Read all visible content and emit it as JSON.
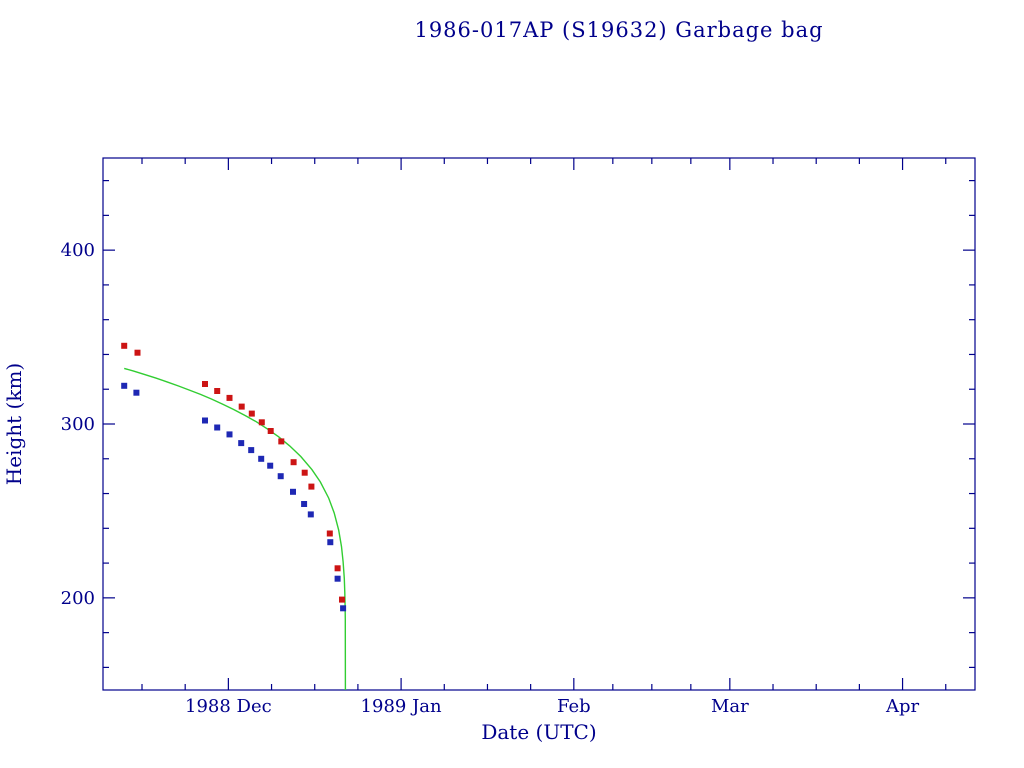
{
  "window": {
    "title": "1986-017AP (S19632) Garbage bag"
  },
  "chart_data": {
    "type": "scatter",
    "title": "1986-017AP (S19632) Garbage bag",
    "xlabel": "Date (UTC)",
    "ylabel": "Height (km)",
    "x_unit": "days since 1988-12-01 (UTC)",
    "xlim": [
      -22.5,
      134
    ],
    "ylim": [
      147,
      453
    ],
    "grid": false,
    "legend": "none",
    "x_ticks_major": [
      {
        "value": 0,
        "label": "1988 Dec"
      },
      {
        "value": 31,
        "label": "1989 Jan"
      },
      {
        "value": 62,
        "label": "Feb"
      },
      {
        "value": 90,
        "label": "Mar"
      },
      {
        "value": 121,
        "label": "Apr"
      }
    ],
    "x_ticks_minor": [
      -15.5,
      -7.75,
      7.75,
      15.5,
      23.25,
      38.75,
      46.5,
      54.25,
      69,
      76,
      83,
      97.75,
      105.5,
      113.25,
      128.75
    ],
    "y_ticks_major": [
      {
        "value": 200,
        "label": "200"
      },
      {
        "value": 300,
        "label": "300"
      },
      {
        "value": 400,
        "label": "400"
      }
    ],
    "y_ticks_minor": [
      160,
      180,
      220,
      240,
      260,
      280,
      320,
      340,
      360,
      380,
      420,
      440
    ],
    "colors": {
      "axis_and_text": "#00008b",
      "apogee": "#cc1414",
      "perigee": "#1e28b4",
      "model_curve": "#32cd32",
      "background": "#ffffff"
    },
    "series": [
      {
        "name": "apogee height (red squares)",
        "type": "scatter",
        "marker": "square",
        "color_key": "apogee",
        "points": [
          [
            -18.7,
            345
          ],
          [
            -16.3,
            341
          ],
          [
            -4.2,
            323
          ],
          [
            -2.0,
            319
          ],
          [
            0.2,
            315
          ],
          [
            2.4,
            310
          ],
          [
            4.2,
            306
          ],
          [
            6.0,
            301
          ],
          [
            7.6,
            296
          ],
          [
            9.5,
            290
          ],
          [
            11.7,
            278
          ],
          [
            13.7,
            272
          ],
          [
            14.9,
            264
          ],
          [
            18.2,
            237
          ],
          [
            19.6,
            217
          ],
          [
            20.4,
            199
          ]
        ]
      },
      {
        "name": "perigee height (blue squares)",
        "type": "scatter",
        "marker": "square",
        "color_key": "perigee",
        "points": [
          [
            -18.7,
            322
          ],
          [
            -16.5,
            318
          ],
          [
            -4.2,
            302
          ],
          [
            -2.0,
            298
          ],
          [
            0.2,
            294
          ],
          [
            2.3,
            289
          ],
          [
            4.1,
            285
          ],
          [
            5.9,
            280
          ],
          [
            7.5,
            276
          ],
          [
            9.4,
            270
          ],
          [
            11.6,
            261
          ],
          [
            13.6,
            254
          ],
          [
            14.8,
            248
          ],
          [
            18.3,
            232
          ],
          [
            19.6,
            211
          ],
          [
            20.6,
            194
          ]
        ]
      },
      {
        "name": "decay model (green curve)",
        "type": "line",
        "color_key": "model_curve",
        "points": [
          [
            -18.7,
            332.0
          ],
          [
            -17,
            330.4
          ],
          [
            -15,
            328.4
          ],
          [
            -13,
            326.4
          ],
          [
            -11,
            324.2
          ],
          [
            -9,
            321.9
          ],
          [
            -7,
            319.5
          ],
          [
            -5,
            317.0
          ],
          [
            -3,
            314.3
          ],
          [
            -1,
            311.4
          ],
          [
            1,
            308.3
          ],
          [
            3,
            304.9
          ],
          [
            5,
            301.3
          ],
          [
            7,
            297.2
          ],
          [
            9,
            292.7
          ],
          [
            11,
            287.4
          ],
          [
            13,
            281.3
          ],
          [
            15,
            273.8
          ],
          [
            16.5,
            266.7
          ],
          [
            18,
            257.4
          ],
          [
            19,
            248.8
          ],
          [
            19.8,
            238.9
          ],
          [
            20.3,
            229.5
          ],
          [
            20.6,
            220.8
          ],
          [
            20.8,
            211.2
          ],
          [
            20.9,
            202.9
          ],
          [
            20.95,
            195.7
          ],
          [
            20.98,
            187.5
          ],
          [
            20.99,
            182.3
          ],
          [
            21.0,
            147
          ]
        ]
      }
    ]
  }
}
